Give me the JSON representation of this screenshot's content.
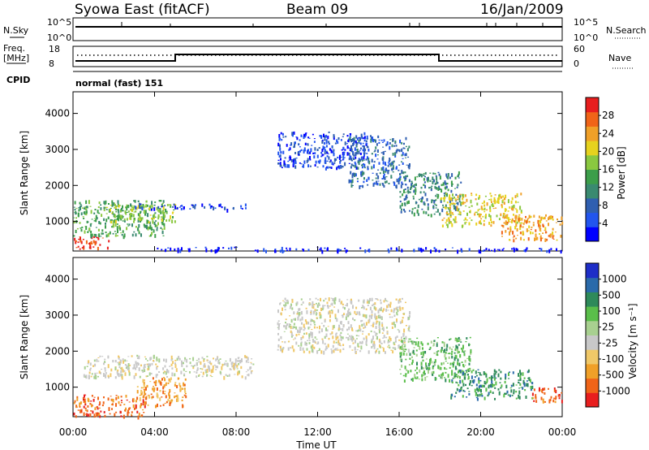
{
  "header": {
    "station": "Syowa East (fitACF)",
    "beam": "Beam 09",
    "date": "16/Jan/2009",
    "cpid_value": "normal (fast) 151"
  },
  "labels": {
    "nsky": "N.Sky",
    "nsearch": "N.Search",
    "freq_line1": "Freq.",
    "freq_line2": "[MHz]",
    "nave": "Nave",
    "cpid": "CPID",
    "nsky_ticks": [
      "10^5",
      "10^0"
    ],
    "nsearch_ticks": [
      "10^5",
      "10^0"
    ],
    "freq_ticks": [
      "18",
      "8"
    ],
    "nave_ticks": [
      "60",
      "0"
    ]
  },
  "colors": {
    "power": [
      "#0000ff",
      "#2255ee",
      "#2f5fb0",
      "#3a8a70",
      "#3c9e4a",
      "#8ac840",
      "#e6d21e",
      "#f0a028",
      "#f06418",
      "#e81e1e"
    ],
    "velocity": [
      "#e81e1e",
      "#f06418",
      "#f0a028",
      "#f0c868",
      "#c8c8c8",
      "#a8d090",
      "#5abe4a",
      "#2e8a5a",
      "#2a6aaa",
      "#1e2ec8"
    ],
    "panel_bg": "#ffffff"
  },
  "chart_data": [
    {
      "type": "heatmap",
      "name": "power",
      "ylabel": "Slant Range [km]",
      "y_ticks": [
        "1000",
        "2000",
        "3000",
        "4000"
      ],
      "ylim": [
        180,
        4600
      ],
      "xlim": [
        0,
        24
      ],
      "x_ticks": [
        "00:00",
        "04:00",
        "08:00",
        "12:00",
        "16:00",
        "20:00",
        "00:00"
      ],
      "colorbar": {
        "label": "Power [dB]",
        "ticks": [
          "4",
          "8",
          "12",
          "16",
          "20",
          "24",
          "28"
        ],
        "range": [
          0,
          30
        ]
      },
      "regions": [
        {
          "t0": 0.0,
          "t1": 1.8,
          "r0": 250,
          "r1": 600,
          "level": 9
        },
        {
          "t0": 0.0,
          "t1": 4.5,
          "r0": 600,
          "r1": 1600,
          "level": 4
        },
        {
          "t0": 1.5,
          "t1": 5.0,
          "r0": 1000,
          "r1": 1500,
          "level": 5
        },
        {
          "t0": 3.0,
          "t1": 8.5,
          "r0": 1350,
          "r1": 1500,
          "level": 1
        },
        {
          "t0": 10.0,
          "t1": 14.5,
          "r0": 2500,
          "r1": 3500,
          "level": 1
        },
        {
          "t0": 13.5,
          "t1": 16.5,
          "r0": 2000,
          "r1": 3400,
          "level": 2
        },
        {
          "t0": 16.0,
          "t1": 19.0,
          "r0": 1200,
          "r1": 2400,
          "level": 3
        },
        {
          "t0": 18.0,
          "t1": 22.0,
          "r0": 900,
          "r1": 1800,
          "level": 6
        },
        {
          "t0": 21.0,
          "t1": 24.0,
          "r0": 500,
          "r1": 1200,
          "level": 7
        },
        {
          "t0": 4.0,
          "t1": 24.0,
          "r0": 200,
          "r1": 300,
          "level": 0
        }
      ]
    },
    {
      "type": "heatmap",
      "name": "velocity",
      "ylabel": "Slant Range [km]",
      "y_ticks": [
        "1000",
        "2000",
        "3000",
        "4000"
      ],
      "ylim": [
        180,
        4600
      ],
      "xlim": [
        0,
        24
      ],
      "x_ticks": [
        "00:00",
        "04:00",
        "08:00",
        "12:00",
        "16:00",
        "20:00",
        "00:00"
      ],
      "xlabel": "Time UT",
      "colorbar": {
        "label": "Velocity [m s⁻¹]",
        "ticks": [
          "-1000",
          "-500",
          "-100",
          "-25",
          "25",
          "100",
          "500",
          "1000"
        ]
      },
      "regions": [
        {
          "t0": 0.0,
          "t1": 3.5,
          "r0": 200,
          "r1": 800,
          "level": 1
        },
        {
          "t0": 3.0,
          "t1": 5.5,
          "r0": 500,
          "r1": 1300,
          "level": 2
        },
        {
          "t0": 0.5,
          "t1": 9.0,
          "r0": 1300,
          "r1": 1900,
          "level": 4
        },
        {
          "t0": 10.0,
          "t1": 16.5,
          "r0": 2000,
          "r1": 3500,
          "level": 4
        },
        {
          "t0": 16.0,
          "t1": 19.5,
          "r0": 1200,
          "r1": 2400,
          "level": 6
        },
        {
          "t0": 18.5,
          "t1": 22.5,
          "r0": 700,
          "r1": 1500,
          "level": 7
        },
        {
          "t0": 22.5,
          "t1": 24.0,
          "r0": 600,
          "r1": 1000,
          "level": 1
        }
      ]
    }
  ]
}
